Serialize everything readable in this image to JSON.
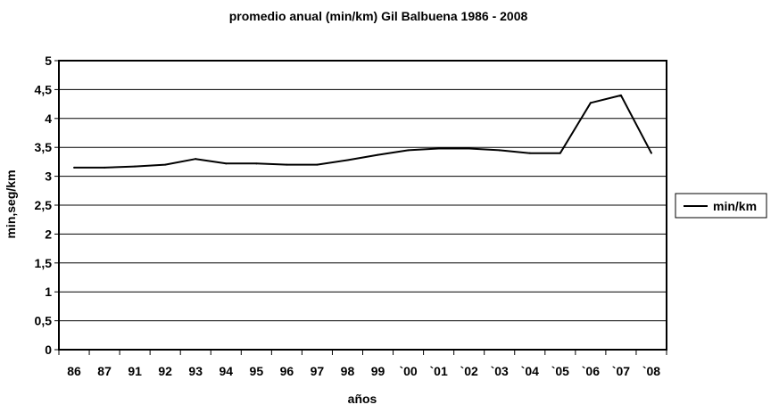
{
  "chart_data": {
    "type": "line",
    "title": "promedio anual (min/km) Gil Balbuena 1986 - 2008",
    "xlabel": "años",
    "ylabel": "min,seg/km",
    "categories": [
      "86",
      "87",
      "91",
      "92",
      "93",
      "94",
      "95",
      "96",
      "97",
      "98",
      "99",
      "`00",
      "`01",
      "`02",
      "`03",
      "`04",
      "`05",
      "`06",
      "`07",
      "`08"
    ],
    "series": [
      {
        "name": "min/km",
        "values": [
          3.15,
          3.15,
          3.17,
          3.2,
          3.3,
          3.22,
          3.22,
          3.2,
          3.2,
          3.28,
          3.37,
          3.45,
          3.48,
          3.48,
          3.45,
          3.4,
          3.4,
          4.27,
          4.4,
          3.4
        ],
        "color": "#000000"
      }
    ],
    "ylim": [
      0,
      5
    ],
    "yticks": [
      "0",
      "0,5",
      "1",
      "1,5",
      "2",
      "2,5",
      "3",
      "3,5",
      "4",
      "4,5",
      "5"
    ],
    "grid": true,
    "legend_position": "right"
  }
}
